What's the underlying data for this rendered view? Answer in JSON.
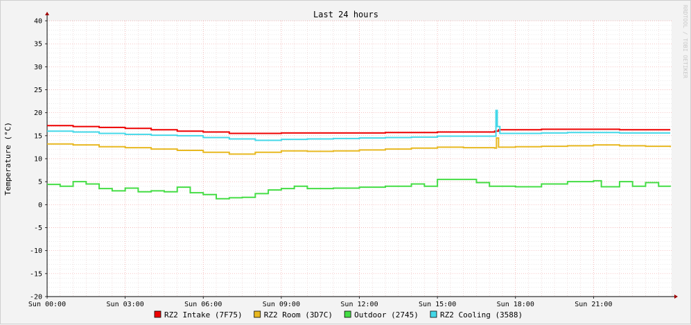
{
  "chart_data": {
    "type": "line",
    "title": "Last 24 hours",
    "ylabel": "Temperature (°C)",
    "watermark": "RRDTOOL / TOBI OETIKER",
    "xlim": [
      0,
      24
    ],
    "ylim": [
      -20,
      40
    ],
    "grid": true,
    "x_ticks": [
      {
        "x": 0,
        "label": "Sun 00:00"
      },
      {
        "x": 3,
        "label": "Sun 03:00"
      },
      {
        "x": 6,
        "label": "Sun 06:00"
      },
      {
        "x": 9,
        "label": "Sun 09:00"
      },
      {
        "x": 12,
        "label": "Sun 12:00"
      },
      {
        "x": 15,
        "label": "Sun 15:00"
      },
      {
        "x": 18,
        "label": "Sun 18:00"
      },
      {
        "x": 21,
        "label": "Sun 21:00"
      }
    ],
    "y_ticks": [
      {
        "y": 40,
        "label": "40"
      },
      {
        "y": 35,
        "label": "35"
      },
      {
        "y": 30,
        "label": "30"
      },
      {
        "y": 25,
        "label": "25"
      },
      {
        "y": 20,
        "label": "20"
      },
      {
        "y": 15,
        "label": "15"
      },
      {
        "y": 10,
        "label": "10"
      },
      {
        "y": 5,
        "label": "5"
      },
      {
        "y": 0,
        "label": "0"
      },
      {
        "y": -5,
        "label": "-5"
      },
      {
        "y": -10,
        "label": "-10"
      },
      {
        "y": -15,
        "label": "-15"
      },
      {
        "y": -20,
        "label": "-20"
      }
    ],
    "legend_position": "bottom",
    "series": [
      {
        "name": "RZ2 Intake (7F75)",
        "color": "#ee0000",
        "points": [
          [
            0,
            17.2
          ],
          [
            1,
            17.0
          ],
          [
            2,
            16.8
          ],
          [
            3,
            16.6
          ],
          [
            4,
            16.3
          ],
          [
            5,
            16.0
          ],
          [
            6,
            15.8
          ],
          [
            7,
            15.5
          ],
          [
            8,
            15.5
          ],
          [
            9,
            15.6
          ],
          [
            10,
            15.6
          ],
          [
            11,
            15.6
          ],
          [
            12,
            15.6
          ],
          [
            13,
            15.7
          ],
          [
            14,
            15.7
          ],
          [
            15,
            15.8
          ],
          [
            16,
            15.8
          ],
          [
            17.2,
            16.0
          ],
          [
            17.35,
            16.3
          ],
          [
            18,
            16.3
          ],
          [
            19,
            16.4
          ],
          [
            20,
            16.4
          ],
          [
            21,
            16.4
          ],
          [
            22,
            16.3
          ],
          [
            23,
            16.3
          ],
          [
            23.95,
            16.3
          ]
        ]
      },
      {
        "name": "RZ2 Room (3D7C)",
        "color": "#e8b820",
        "points": [
          [
            0,
            13.2
          ],
          [
            1,
            13.0
          ],
          [
            2,
            12.6
          ],
          [
            3,
            12.4
          ],
          [
            4,
            12.1
          ],
          [
            5,
            11.8
          ],
          [
            6,
            11.4
          ],
          [
            7,
            11.0
          ],
          [
            8,
            11.4
          ],
          [
            9,
            11.7
          ],
          [
            10,
            11.6
          ],
          [
            11,
            11.7
          ],
          [
            12,
            11.9
          ],
          [
            13,
            12.1
          ],
          [
            14,
            12.3
          ],
          [
            15,
            12.5
          ],
          [
            16,
            12.4
          ],
          [
            17.2,
            12.3
          ],
          [
            17.27,
            14.5
          ],
          [
            17.35,
            12.5
          ],
          [
            18,
            12.6
          ],
          [
            19,
            12.7
          ],
          [
            20,
            12.8
          ],
          [
            21,
            13.0
          ],
          [
            22,
            12.8
          ],
          [
            23,
            12.7
          ],
          [
            23.95,
            12.5
          ]
        ]
      },
      {
        "name": "Outdoor (2745)",
        "color": "#44dd44",
        "points": [
          [
            0,
            4.4
          ],
          [
            0.5,
            4.0
          ],
          [
            1,
            5.0
          ],
          [
            1.5,
            4.5
          ],
          [
            2,
            3.5
          ],
          [
            2.5,
            3.0
          ],
          [
            3,
            3.6
          ],
          [
            3.5,
            2.8
          ],
          [
            4,
            3.0
          ],
          [
            4.5,
            2.8
          ],
          [
            5,
            3.8
          ],
          [
            5.5,
            2.6
          ],
          [
            6,
            2.2
          ],
          [
            6.5,
            1.3
          ],
          [
            7,
            1.5
          ],
          [
            7.5,
            1.6
          ],
          [
            8,
            2.4
          ],
          [
            8.5,
            3.2
          ],
          [
            9,
            3.5
          ],
          [
            9.5,
            4.0
          ],
          [
            10,
            3.5
          ],
          [
            11,
            3.6
          ],
          [
            12,
            3.8
          ],
          [
            13,
            4.0
          ],
          [
            14,
            4.5
          ],
          [
            14.5,
            4.0
          ],
          [
            15,
            5.5
          ],
          [
            16,
            5.5
          ],
          [
            16.5,
            4.8
          ],
          [
            17,
            4.0
          ],
          [
            18,
            3.9
          ],
          [
            19,
            4.5
          ],
          [
            20,
            5.0
          ],
          [
            21,
            5.2
          ],
          [
            21.3,
            3.9
          ],
          [
            22,
            5.0
          ],
          [
            22.5,
            4.0
          ],
          [
            23,
            4.8
          ],
          [
            23.5,
            4.0
          ],
          [
            23.95,
            3.9
          ]
        ]
      },
      {
        "name": "RZ2 Cooling (3588)",
        "color": "#44d8e8",
        "points": [
          [
            0,
            16.0
          ],
          [
            1,
            15.8
          ],
          [
            2,
            15.5
          ],
          [
            3,
            15.3
          ],
          [
            4,
            15.1
          ],
          [
            5,
            15.0
          ],
          [
            6,
            14.6
          ],
          [
            7,
            14.3
          ],
          [
            8,
            14.0
          ],
          [
            9,
            14.2
          ],
          [
            10,
            14.3
          ],
          [
            11,
            14.4
          ],
          [
            12,
            14.5
          ],
          [
            13,
            14.6
          ],
          [
            14,
            14.7
          ],
          [
            15,
            14.9
          ],
          [
            16,
            14.9
          ],
          [
            17.2,
            14.9
          ],
          [
            17.25,
            20.5
          ],
          [
            17.3,
            17.0
          ],
          [
            17.4,
            15.5
          ],
          [
            18,
            15.5
          ],
          [
            19,
            15.6
          ],
          [
            20,
            15.7
          ],
          [
            21,
            15.7
          ],
          [
            22,
            15.6
          ],
          [
            23,
            15.6
          ],
          [
            23.95,
            15.6
          ]
        ]
      }
    ]
  }
}
